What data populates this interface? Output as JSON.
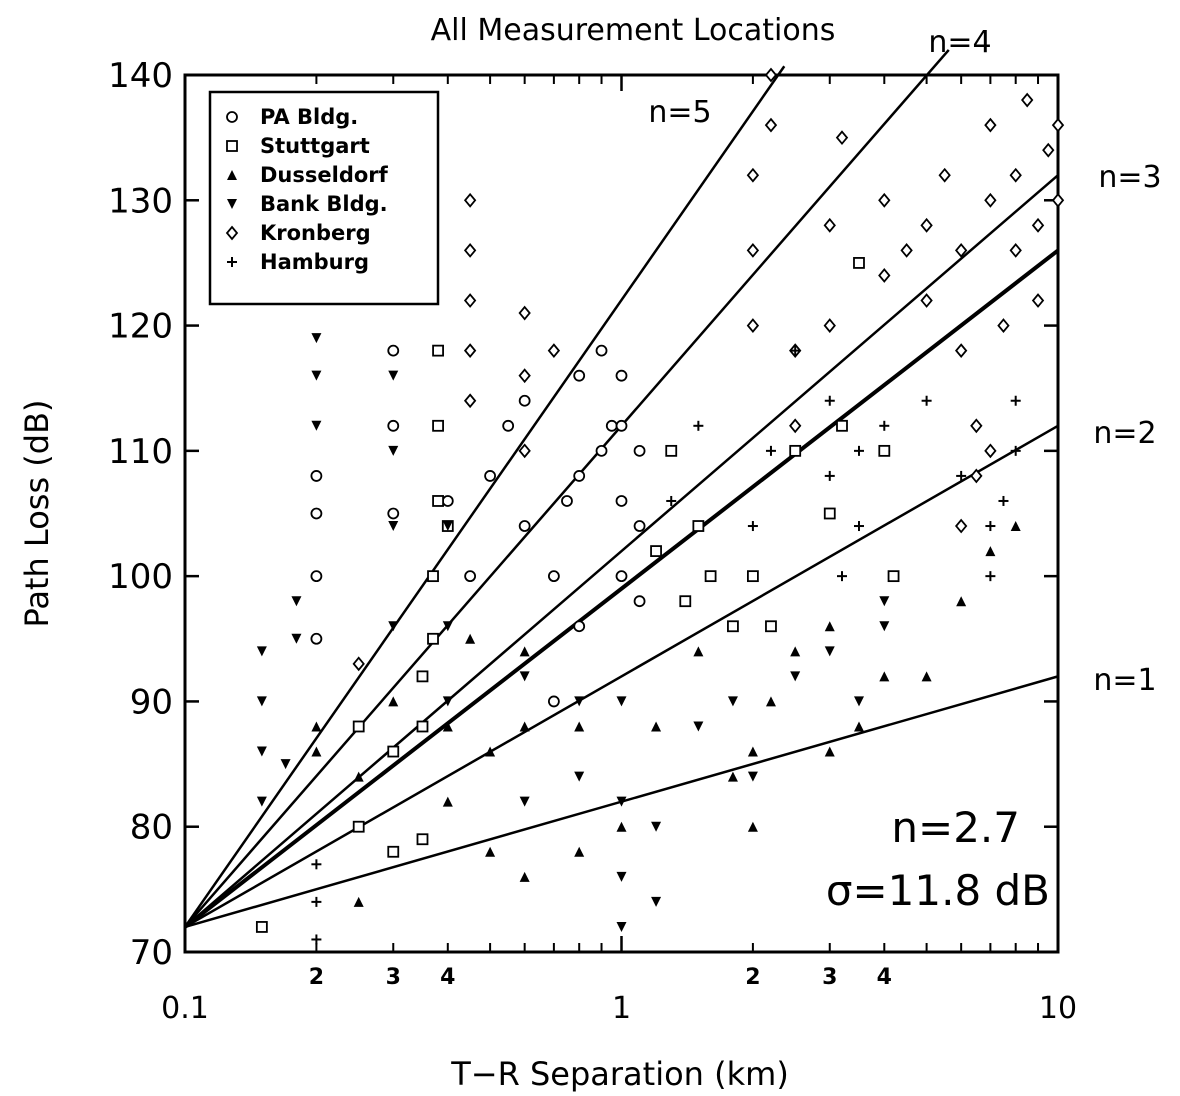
{
  "chart_data": {
    "type": "scatter",
    "title": "All Measurement Locations",
    "xlabel": "T−R Separation (km)",
    "ylabel": "Path Loss (dB)",
    "xscale": "log",
    "xlim": [
      0.1,
      10
    ],
    "ylim": [
      70,
      140
    ],
    "grid": false,
    "legend_position": "top-left",
    "x_major_ticks": [
      {
        "value": 0.1,
        "label": "0.1"
      },
      {
        "value": 1,
        "label": "1"
      },
      {
        "value": 10,
        "label": "10"
      }
    ],
    "x_minor_ticks": [
      {
        "value": 0.2,
        "label": "2"
      },
      {
        "value": 0.3,
        "label": "3"
      },
      {
        "value": 0.4,
        "label": "4"
      },
      {
        "value": 2,
        "label": "2"
      },
      {
        "value": 3,
        "label": "3"
      },
      {
        "value": 4,
        "label": "4"
      }
    ],
    "y_ticks": [
      70,
      80,
      90,
      100,
      110,
      120,
      130,
      140
    ],
    "reference_lines": [
      {
        "label": "n=1",
        "n": 1,
        "x": [
          0.1,
          10
        ],
        "y": [
          72,
          92
        ]
      },
      {
        "label": "n=2",
        "n": 2,
        "x": [
          0.1,
          10
        ],
        "y": [
          72,
          112
        ]
      },
      {
        "label": "n=3",
        "n": 3,
        "x": [
          0.1,
          10
        ],
        "y": [
          72,
          132
        ]
      },
      {
        "label": "n=4",
        "n": 4,
        "x": [
          0.1,
          5.62
        ],
        "y": [
          72,
          142
        ]
      },
      {
        "label": "n=5",
        "n": 5,
        "x": [
          0.1,
          2.36
        ],
        "y": [
          72,
          140.7
        ]
      }
    ],
    "fit_line": {
      "n": 2.7,
      "x": [
        0.1,
        10
      ],
      "y": [
        72,
        126
      ]
    },
    "annotations": {
      "n": "n=2.7",
      "sigma": "σ=11.8 dB"
    },
    "series": [
      {
        "name": "PA Bldg.",
        "marker": "circle",
        "points": [
          [
            0.2,
            95
          ],
          [
            0.2,
            100
          ],
          [
            0.2,
            105
          ],
          [
            0.2,
            108
          ],
          [
            0.3,
            105
          ],
          [
            0.3,
            112
          ],
          [
            0.3,
            118
          ],
          [
            0.4,
            106
          ],
          [
            0.45,
            100
          ],
          [
            0.5,
            108
          ],
          [
            0.55,
            112
          ],
          [
            0.6,
            104
          ],
          [
            0.6,
            114
          ],
          [
            0.7,
            90
          ],
          [
            0.7,
            100
          ],
          [
            0.75,
            106
          ],
          [
            0.8,
            96
          ],
          [
            0.8,
            108
          ],
          [
            0.8,
            116
          ],
          [
            0.9,
            110
          ],
          [
            0.9,
            118
          ],
          [
            0.95,
            112
          ],
          [
            1.0,
            100
          ],
          [
            1.0,
            106
          ],
          [
            1.0,
            112
          ],
          [
            1.0,
            116
          ],
          [
            1.1,
            98
          ],
          [
            1.1,
            104
          ],
          [
            1.1,
            110
          ]
        ]
      },
      {
        "name": "Stuttgart",
        "marker": "square",
        "points": [
          [
            0.15,
            72
          ],
          [
            0.25,
            80
          ],
          [
            0.25,
            88
          ],
          [
            0.3,
            78
          ],
          [
            0.3,
            86
          ],
          [
            0.35,
            79
          ],
          [
            0.35,
            88
          ],
          [
            0.35,
            92
          ],
          [
            0.37,
            95
          ],
          [
            0.37,
            100
          ],
          [
            0.38,
            106
          ],
          [
            0.38,
            112
          ],
          [
            0.38,
            118
          ],
          [
            0.4,
            104
          ],
          [
            1.2,
            102
          ],
          [
            1.3,
            110
          ],
          [
            1.4,
            98
          ],
          [
            1.5,
            104
          ],
          [
            1.6,
            100
          ],
          [
            1.8,
            96
          ],
          [
            2.0,
            100
          ],
          [
            2.2,
            96
          ],
          [
            2.5,
            110
          ],
          [
            3.0,
            105
          ],
          [
            3.2,
            112
          ],
          [
            3.5,
            125
          ],
          [
            4.0,
            110
          ],
          [
            4.2,
            100
          ]
        ]
      },
      {
        "name": "Dusseldorf",
        "marker": "triangle-up",
        "points": [
          [
            0.2,
            86
          ],
          [
            0.2,
            88
          ],
          [
            0.25,
            74
          ],
          [
            0.25,
            84
          ],
          [
            0.3,
            90
          ],
          [
            0.4,
            82
          ],
          [
            0.4,
            88
          ],
          [
            0.45,
            95
          ],
          [
            0.5,
            78
          ],
          [
            0.5,
            86
          ],
          [
            0.6,
            76
          ],
          [
            0.6,
            88
          ],
          [
            0.6,
            94
          ],
          [
            0.8,
            78
          ],
          [
            0.8,
            88
          ],
          [
            1.0,
            80
          ],
          [
            1.2,
            88
          ],
          [
            1.5,
            94
          ],
          [
            1.8,
            84
          ],
          [
            2.0,
            80
          ],
          [
            2.0,
            86
          ],
          [
            2.2,
            90
          ],
          [
            2.5,
            94
          ],
          [
            3.0,
            86
          ],
          [
            3.0,
            96
          ],
          [
            3.5,
            88
          ],
          [
            4.0,
            92
          ],
          [
            5.0,
            92
          ],
          [
            6.0,
            98
          ],
          [
            7.0,
            102
          ],
          [
            8.0,
            104
          ]
        ]
      },
      {
        "name": "Bank Bldg.",
        "marker": "triangle-down",
        "points": [
          [
            0.15,
            82
          ],
          [
            0.15,
            86
          ],
          [
            0.15,
            90
          ],
          [
            0.15,
            94
          ],
          [
            0.17,
            85
          ],
          [
            0.18,
            95
          ],
          [
            0.18,
            98
          ],
          [
            0.2,
            112
          ],
          [
            0.2,
            116
          ],
          [
            0.2,
            119
          ],
          [
            0.3,
            96
          ],
          [
            0.3,
            104
          ],
          [
            0.3,
            110
          ],
          [
            0.3,
            116
          ],
          [
            0.4,
            90
          ],
          [
            0.4,
            96
          ],
          [
            0.4,
            104
          ],
          [
            0.6,
            82
          ],
          [
            0.6,
            92
          ],
          [
            0.8,
            84
          ],
          [
            0.8,
            90
          ],
          [
            1.0,
            72
          ],
          [
            1.0,
            76
          ],
          [
            1.0,
            82
          ],
          [
            1.0,
            90
          ],
          [
            1.2,
            74
          ],
          [
            1.2,
            80
          ],
          [
            1.5,
            88
          ],
          [
            1.8,
            90
          ],
          [
            2.0,
            84
          ],
          [
            2.5,
            92
          ],
          [
            3.0,
            94
          ],
          [
            3.5,
            90
          ],
          [
            4.0,
            96
          ],
          [
            4.0,
            98
          ]
        ]
      },
      {
        "name": "Kronberg",
        "marker": "diamond",
        "points": [
          [
            0.25,
            93
          ],
          [
            0.45,
            122
          ],
          [
            0.45,
            126
          ],
          [
            0.45,
            130
          ],
          [
            0.45,
            114
          ],
          [
            0.45,
            118
          ],
          [
            0.6,
            121
          ],
          [
            0.6,
            116
          ],
          [
            0.6,
            110
          ],
          [
            0.7,
            118
          ],
          [
            2.0,
            120
          ],
          [
            2.0,
            126
          ],
          [
            2.0,
            132
          ],
          [
            2.2,
            136
          ],
          [
            2.2,
            140
          ],
          [
            2.5,
            112
          ],
          [
            2.5,
            118
          ],
          [
            3.0,
            120
          ],
          [
            3.0,
            128
          ],
          [
            3.2,
            135
          ],
          [
            4.0,
            124
          ],
          [
            4.0,
            130
          ],
          [
            4.5,
            126
          ],
          [
            5.0,
            122
          ],
          [
            5.0,
            128
          ],
          [
            5.5,
            132
          ],
          [
            6.0,
            118
          ],
          [
            6.0,
            126
          ],
          [
            6.5,
            112
          ],
          [
            7.0,
            130
          ],
          [
            7.0,
            136
          ],
          [
            7.5,
            120
          ],
          [
            8.0,
            126
          ],
          [
            8.0,
            132
          ],
          [
            8.5,
            138
          ],
          [
            9.0,
            122
          ],
          [
            9.0,
            128
          ],
          [
            9.5,
            134
          ],
          [
            10,
            130
          ],
          [
            10,
            136
          ],
          [
            6.0,
            104
          ],
          [
            6.5,
            108
          ],
          [
            7.0,
            110
          ]
        ]
      },
      {
        "name": "Hamburg",
        "marker": "plus",
        "points": [
          [
            0.2,
            71
          ],
          [
            0.2,
            74
          ],
          [
            0.2,
            77
          ],
          [
            1.3,
            106
          ],
          [
            1.5,
            112
          ],
          [
            2.0,
            104
          ],
          [
            2.2,
            110
          ],
          [
            2.5,
            118
          ],
          [
            3.0,
            108
          ],
          [
            3.0,
            114
          ],
          [
            3.2,
            100
          ],
          [
            3.5,
            104
          ],
          [
            3.5,
            110
          ],
          [
            4.0,
            112
          ],
          [
            5.0,
            114
          ],
          [
            6.0,
            108
          ],
          [
            7.0,
            104
          ],
          [
            7.0,
            100
          ],
          [
            7.5,
            106
          ],
          [
            8.0,
            114
          ],
          [
            8.0,
            110
          ]
        ]
      }
    ]
  }
}
